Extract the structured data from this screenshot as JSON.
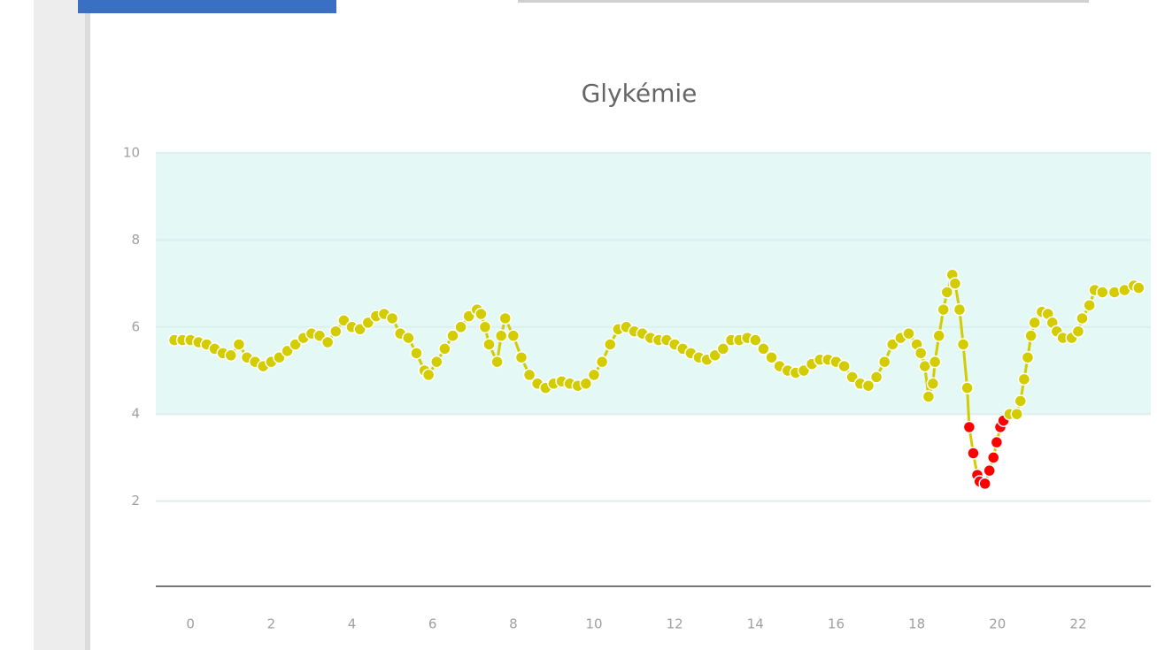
{
  "chart_data": {
    "type": "line",
    "title": "Glykémie",
    "x": [
      -0.4,
      -0.2,
      0,
      0.2,
      0.4,
      0.6,
      0.8,
      1,
      1.2,
      1.4,
      1.6,
      1.8,
      2,
      2.2,
      2.4,
      2.6,
      2.8,
      3,
      3.2,
      3.4,
      3.6,
      3.8,
      4,
      4.2,
      4.4,
      4.6,
      4.8,
      5,
      5.2,
      5.4,
      5.6,
      5.8,
      5.9,
      6.1,
      6.3,
      6.5,
      6.7,
      6.9,
      7.1,
      7.2,
      7.3,
      7.4,
      7.6,
      7.7,
      7.8,
      8,
      8.2,
      8.4,
      8.6,
      8.8,
      9,
      9.2,
      9.4,
      9.6,
      9.8,
      10,
      10.2,
      10.4,
      10.6,
      10.8,
      11,
      11.2,
      11.4,
      11.6,
      11.8,
      12,
      12.2,
      12.4,
      12.6,
      12.8,
      13,
      13.2,
      13.4,
      13.6,
      13.8,
      14,
      14.2,
      14.4,
      14.6,
      14.8,
      15,
      15.2,
      15.4,
      15.6,
      15.8,
      16,
      16.2,
      16.4,
      16.6,
      16.8,
      17,
      17.2,
      17.4,
      17.6,
      17.8,
      18,
      18.1,
      18.2,
      18.29,
      18.4,
      18.45,
      18.55,
      18.66,
      18.75,
      18.88,
      18.95,
      19.06,
      19.15,
      19.25,
      19.3,
      19.4,
      19.5,
      19.56,
      19.69,
      19.8,
      19.9,
      19.98,
      20.07,
      20.15,
      20.3,
      20.48,
      20.57,
      20.66,
      20.75,
      20.83,
      20.92,
      21.1,
      21.25,
      21.36,
      21.47,
      21.62,
      21.84,
      22,
      22.1,
      22.28,
      22.41,
      22.6,
      22.9,
      23.15,
      23.38,
      23.5
    ],
    "series": [
      {
        "name": "Glykémie",
        "values": [
          5.7,
          5.7,
          5.7,
          5.65,
          5.6,
          5.5,
          5.4,
          5.35,
          5.6,
          5.3,
          5.2,
          5.1,
          5.2,
          5.3,
          5.45,
          5.6,
          5.75,
          5.85,
          5.8,
          5.65,
          5.9,
          6.15,
          6.0,
          5.95,
          6.1,
          6.25,
          6.3,
          6.2,
          5.85,
          5.75,
          5.4,
          5.0,
          4.9,
          5.2,
          5.5,
          5.8,
          6.0,
          6.25,
          6.4,
          6.3,
          6.0,
          5.6,
          5.2,
          5.8,
          6.2,
          5.8,
          5.3,
          4.9,
          4.7,
          4.6,
          4.7,
          4.75,
          4.7,
          4.65,
          4.7,
          4.9,
          5.2,
          5.6,
          5.95,
          6.0,
          5.9,
          5.85,
          5.75,
          5.7,
          5.7,
          5.6,
          5.5,
          5.4,
          5.3,
          5.25,
          5.35,
          5.5,
          5.7,
          5.7,
          5.75,
          5.7,
          5.5,
          5.3,
          5.1,
          5.0,
          4.95,
          5.0,
          5.15,
          5.25,
          5.25,
          5.2,
          5.1,
          4.85,
          4.7,
          4.65,
          4.85,
          5.2,
          5.6,
          5.75,
          5.85,
          5.6,
          5.4,
          5.1,
          4.4,
          4.7,
          5.2,
          5.8,
          6.4,
          6.8,
          7.2,
          7.0,
          6.4,
          5.6,
          4.6,
          3.7,
          3.1,
          2.6,
          2.45,
          2.4,
          2.7,
          3.0,
          3.35,
          3.7,
          3.85,
          4.0,
          4.0,
          4.3,
          4.8,
          5.3,
          5.8,
          6.1,
          6.35,
          6.3,
          6.1,
          5.9,
          5.75,
          5.75,
          5.9,
          6.2,
          6.5,
          6.85,
          6.8,
          6.8,
          6.85,
          6.95,
          6.9
        ]
      }
    ],
    "color": "#d2cc00",
    "low_color": "#ff0000",
    "band": [
      4,
      10
    ],
    "band_color": "#e4f8f6",
    "xlim": [
      -0.86,
      23.8
    ],
    "xticks": [
      0,
      2,
      4,
      6,
      8,
      10,
      12,
      14,
      16,
      18,
      20,
      22
    ],
    "ylim": [
      0,
      10
    ],
    "yticks": [
      2,
      4,
      6,
      8,
      10
    ],
    "grid": true
  }
}
